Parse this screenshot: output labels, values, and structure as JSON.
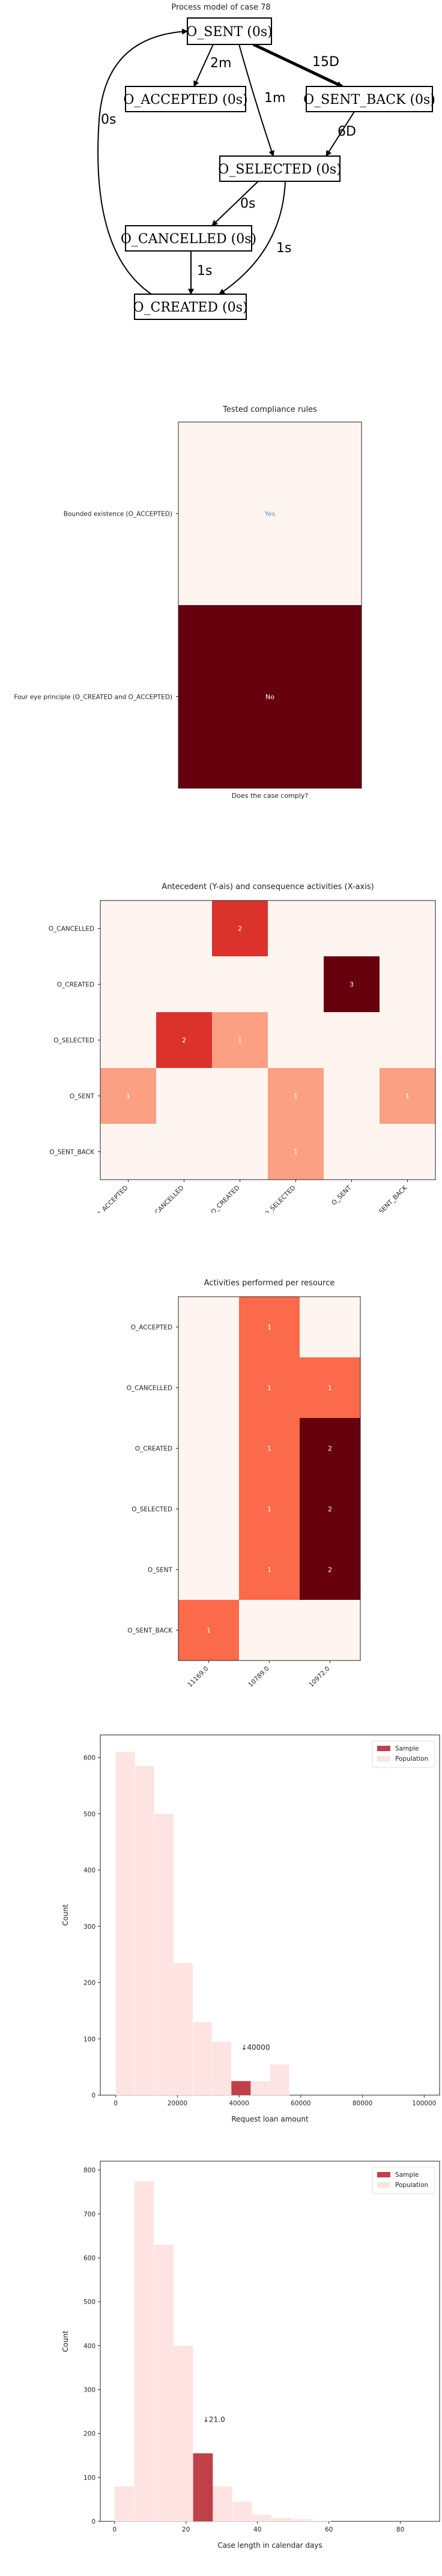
{
  "process_model": {
    "title": "Process model of case 78",
    "nodes": [
      {
        "id": "sent",
        "label": "O_SENT (0s)"
      },
      {
        "id": "accepted",
        "label": "O_ACCEPTED (0s)"
      },
      {
        "id": "sent_back",
        "label": "O_SENT_BACK (0s)"
      },
      {
        "id": "selected",
        "label": "O_SELECTED (0s)"
      },
      {
        "id": "cancelled",
        "label": "O_CANCELLED (0s)"
      },
      {
        "id": "created",
        "label": "O_CREATED (0s)"
      }
    ],
    "edges": [
      {
        "from": "sent",
        "to": "accepted",
        "label": "2m"
      },
      {
        "from": "sent",
        "to": "sent_back",
        "label": "15D",
        "bold": true
      },
      {
        "from": "sent",
        "to": "selected",
        "label": "1m"
      },
      {
        "from": "sent_back",
        "to": "selected",
        "label": "6D"
      },
      {
        "from": "selected",
        "to": "cancelled",
        "label": "0s"
      },
      {
        "from": "selected",
        "to": "created",
        "label": "1s"
      },
      {
        "from": "cancelled",
        "to": "created",
        "label": "1s"
      },
      {
        "from": "created",
        "to": "sent",
        "label": "0s"
      }
    ]
  },
  "chart_data": [
    {
      "type": "heatmap",
      "title": "Tested compliance rules",
      "xlabel": "Does the case comply?",
      "rows": [
        "Bounded existence (O_ACCEPTED)",
        "Four eye principle (O_CREATED and O_ACCEPTED)"
      ],
      "cols": [
        ""
      ],
      "values": [
        [
          0
        ],
        [
          1
        ]
      ],
      "cell_labels": [
        [
          "Yes"
        ],
        [
          "No"
        ]
      ],
      "colormap": "Reds"
    },
    {
      "type": "heatmap",
      "title": "Antecedent (Y-ais) and consequence activities (X-axis)",
      "rows": [
        "O_CANCELLED",
        "O_CREATED",
        "O_SELECTED",
        "O_SENT",
        "O_SENT_BACK"
      ],
      "cols": [
        "O_ACCEPTED",
        "O_CANCELLED",
        "O_CREATED",
        "O_SELECTED",
        "O_SENT",
        "O_SENT_BACK"
      ],
      "values": [
        [
          0,
          0,
          2,
          0,
          0,
          0
        ],
        [
          0,
          0,
          0,
          0,
          3,
          0
        ],
        [
          0,
          2,
          1,
          0,
          0,
          0
        ],
        [
          1,
          0,
          0,
          1,
          0,
          1
        ],
        [
          0,
          0,
          0,
          1,
          0,
          0
        ]
      ],
      "vmax": 3,
      "colormap": "Reds"
    },
    {
      "type": "heatmap",
      "title": "Activities performed per resource",
      "rows": [
        "O_ACCEPTED",
        "O_CANCELLED",
        "O_CREATED",
        "O_SELECTED",
        "O_SENT",
        "O_SENT_BACK"
      ],
      "cols": [
        "11169.0",
        "10789.0",
        "10972.0"
      ],
      "values": [
        [
          0,
          1,
          0
        ],
        [
          0,
          1,
          1
        ],
        [
          0,
          1,
          2
        ],
        [
          0,
          1,
          2
        ],
        [
          0,
          1,
          2
        ],
        [
          1,
          0,
          0
        ]
      ],
      "vmax": 2,
      "colormap": "Reds"
    },
    {
      "type": "bar",
      "title": "",
      "xlabel": "Request loan amount",
      "ylabel": "Count",
      "xlim": [
        -5000,
        105000
      ],
      "ylim": [
        0,
        640
      ],
      "xticks": [
        "0",
        "20000",
        "40000",
        "60000",
        "80000",
        "100000"
      ],
      "yticks": [
        "0",
        "100",
        "200",
        "300",
        "400",
        "500",
        "600"
      ],
      "bin_width": 6250,
      "series": [
        {
          "name": "Population",
          "bins_start": [
            0,
            6250,
            12500,
            18750,
            25000,
            31250,
            37500,
            43750,
            50000
          ],
          "values": [
            610,
            585,
            500,
            235,
            130,
            95,
            20,
            25,
            55
          ]
        },
        {
          "name": "Sample",
          "bins_start": [
            37500
          ],
          "values": [
            25
          ]
        }
      ],
      "annotation": "↓40000",
      "legend": "top-right"
    },
    {
      "type": "bar",
      "title": "",
      "xlabel": "Case length in calendar days",
      "ylabel": "Count",
      "xlim": [
        -4,
        91
      ],
      "ylim": [
        0,
        820
      ],
      "xticks": [
        "0",
        "20",
        "40",
        "60",
        "80"
      ],
      "yticks": [
        "0",
        "100",
        "200",
        "300",
        "400",
        "500",
        "600",
        "700",
        "800"
      ],
      "bin_width": 5.5,
      "series": [
        {
          "name": "Population",
          "bins_start": [
            0,
            5.5,
            11,
            16.5,
            22,
            27.5,
            33,
            38.5,
            44,
            49.5,
            55
          ],
          "values": [
            80,
            775,
            630,
            400,
            155,
            80,
            45,
            15,
            8,
            5,
            2
          ]
        },
        {
          "name": "Sample",
          "bins_start": [
            22
          ],
          "values": [
            155
          ]
        }
      ],
      "annotation": "↓21.0",
      "legend": "top-right"
    }
  ]
}
